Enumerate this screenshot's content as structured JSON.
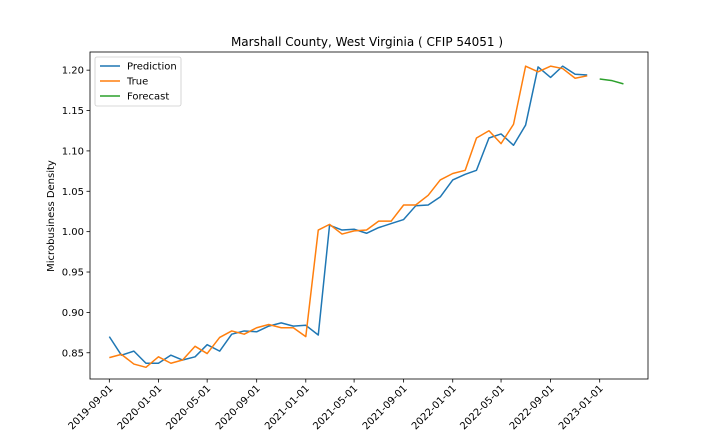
{
  "chart_data": {
    "type": "line",
    "title": "Marshall County, West Virginia ( CFIP 54051 )",
    "xlabel": "",
    "ylabel": "Microbusiness Density",
    "xlim": [
      "2019-07-15",
      "2023-05-01"
    ],
    "ylim": [
      0.8175,
      1.2225
    ],
    "grid": false,
    "legend_position": "upper-left",
    "x_ticks": [
      "2019-09-01",
      "2020-01-01",
      "2020-05-01",
      "2020-09-01",
      "2021-01-01",
      "2021-05-01",
      "2021-09-01",
      "2022-01-01",
      "2022-05-01",
      "2022-09-01",
      "2023-01-01"
    ],
    "y_ticks": [
      0.85,
      0.9,
      0.95,
      1.0,
      1.05,
      1.1,
      1.15,
      1.2
    ],
    "y_tick_labels": [
      "0.85",
      "0.90",
      "0.95",
      "1.00",
      "1.05",
      "1.10",
      "1.15",
      "1.20"
    ],
    "series": [
      {
        "name": "Prediction",
        "color": "#1f77b4",
        "x": [
          "2019-09-01",
          "2019-10-01",
          "2019-11-01",
          "2019-12-01",
          "2020-01-01",
          "2020-02-01",
          "2020-03-01",
          "2020-04-01",
          "2020-05-01",
          "2020-06-01",
          "2020-07-01",
          "2020-08-01",
          "2020-09-01",
          "2020-10-01",
          "2020-11-01",
          "2020-12-01",
          "2021-01-01",
          "2021-02-01",
          "2021-03-01",
          "2021-04-01",
          "2021-05-01",
          "2021-06-01",
          "2021-07-01",
          "2021-08-01",
          "2021-09-01",
          "2021-10-01",
          "2021-11-01",
          "2021-12-01",
          "2022-01-01",
          "2022-02-01",
          "2022-03-01",
          "2022-04-01",
          "2022-05-01",
          "2022-06-01",
          "2022-07-01",
          "2022-08-01",
          "2022-09-01",
          "2022-10-01",
          "2022-11-01",
          "2022-12-01"
        ],
        "values": [
          0.87,
          0.847,
          0.852,
          0.837,
          0.837,
          0.847,
          0.841,
          0.845,
          0.86,
          0.852,
          0.873,
          0.877,
          0.876,
          0.883,
          0.887,
          0.883,
          0.884,
          0.872,
          1.008,
          1.002,
          1.003,
          0.998,
          1.005,
          1.01,
          1.015,
          1.032,
          1.033,
          1.043,
          1.064,
          1.071,
          1.076,
          1.116,
          1.121,
          1.107,
          1.132,
          1.204,
          1.191,
          1.205,
          1.195,
          1.194
        ]
      },
      {
        "name": "True",
        "color": "#ff7f0e",
        "x": [
          "2019-09-01",
          "2019-10-01",
          "2019-11-01",
          "2019-12-01",
          "2020-01-01",
          "2020-02-01",
          "2020-03-01",
          "2020-04-01",
          "2020-05-01",
          "2020-06-01",
          "2020-07-01",
          "2020-08-01",
          "2020-09-01",
          "2020-10-01",
          "2020-11-01",
          "2020-12-01",
          "2021-01-01",
          "2021-02-01",
          "2021-03-01",
          "2021-04-01",
          "2021-05-01",
          "2021-06-01",
          "2021-07-01",
          "2021-08-01",
          "2021-09-01",
          "2021-10-01",
          "2021-11-01",
          "2021-12-01",
          "2022-01-01",
          "2022-02-01",
          "2022-03-01",
          "2022-04-01",
          "2022-05-01",
          "2022-06-01",
          "2022-07-01",
          "2022-08-01",
          "2022-09-01",
          "2022-10-01",
          "2022-11-01",
          "2022-12-01"
        ],
        "values": [
          0.844,
          0.848,
          0.836,
          0.832,
          0.845,
          0.837,
          0.841,
          0.858,
          0.849,
          0.869,
          0.877,
          0.873,
          0.881,
          0.885,
          0.881,
          0.881,
          0.87,
          1.002,
          1.009,
          0.997,
          1.001,
          1.002,
          1.013,
          1.013,
          1.033,
          1.033,
          1.045,
          1.064,
          1.072,
          1.076,
          1.116,
          1.125,
          1.109,
          1.133,
          1.205,
          1.198,
          1.205,
          1.202,
          1.19,
          1.193
        ]
      },
      {
        "name": "Forecast",
        "color": "#2ca02c",
        "x": [
          "2023-01-01",
          "2023-02-01",
          "2023-03-01"
        ],
        "values": [
          1.189,
          1.187,
          1.183
        ]
      }
    ]
  }
}
